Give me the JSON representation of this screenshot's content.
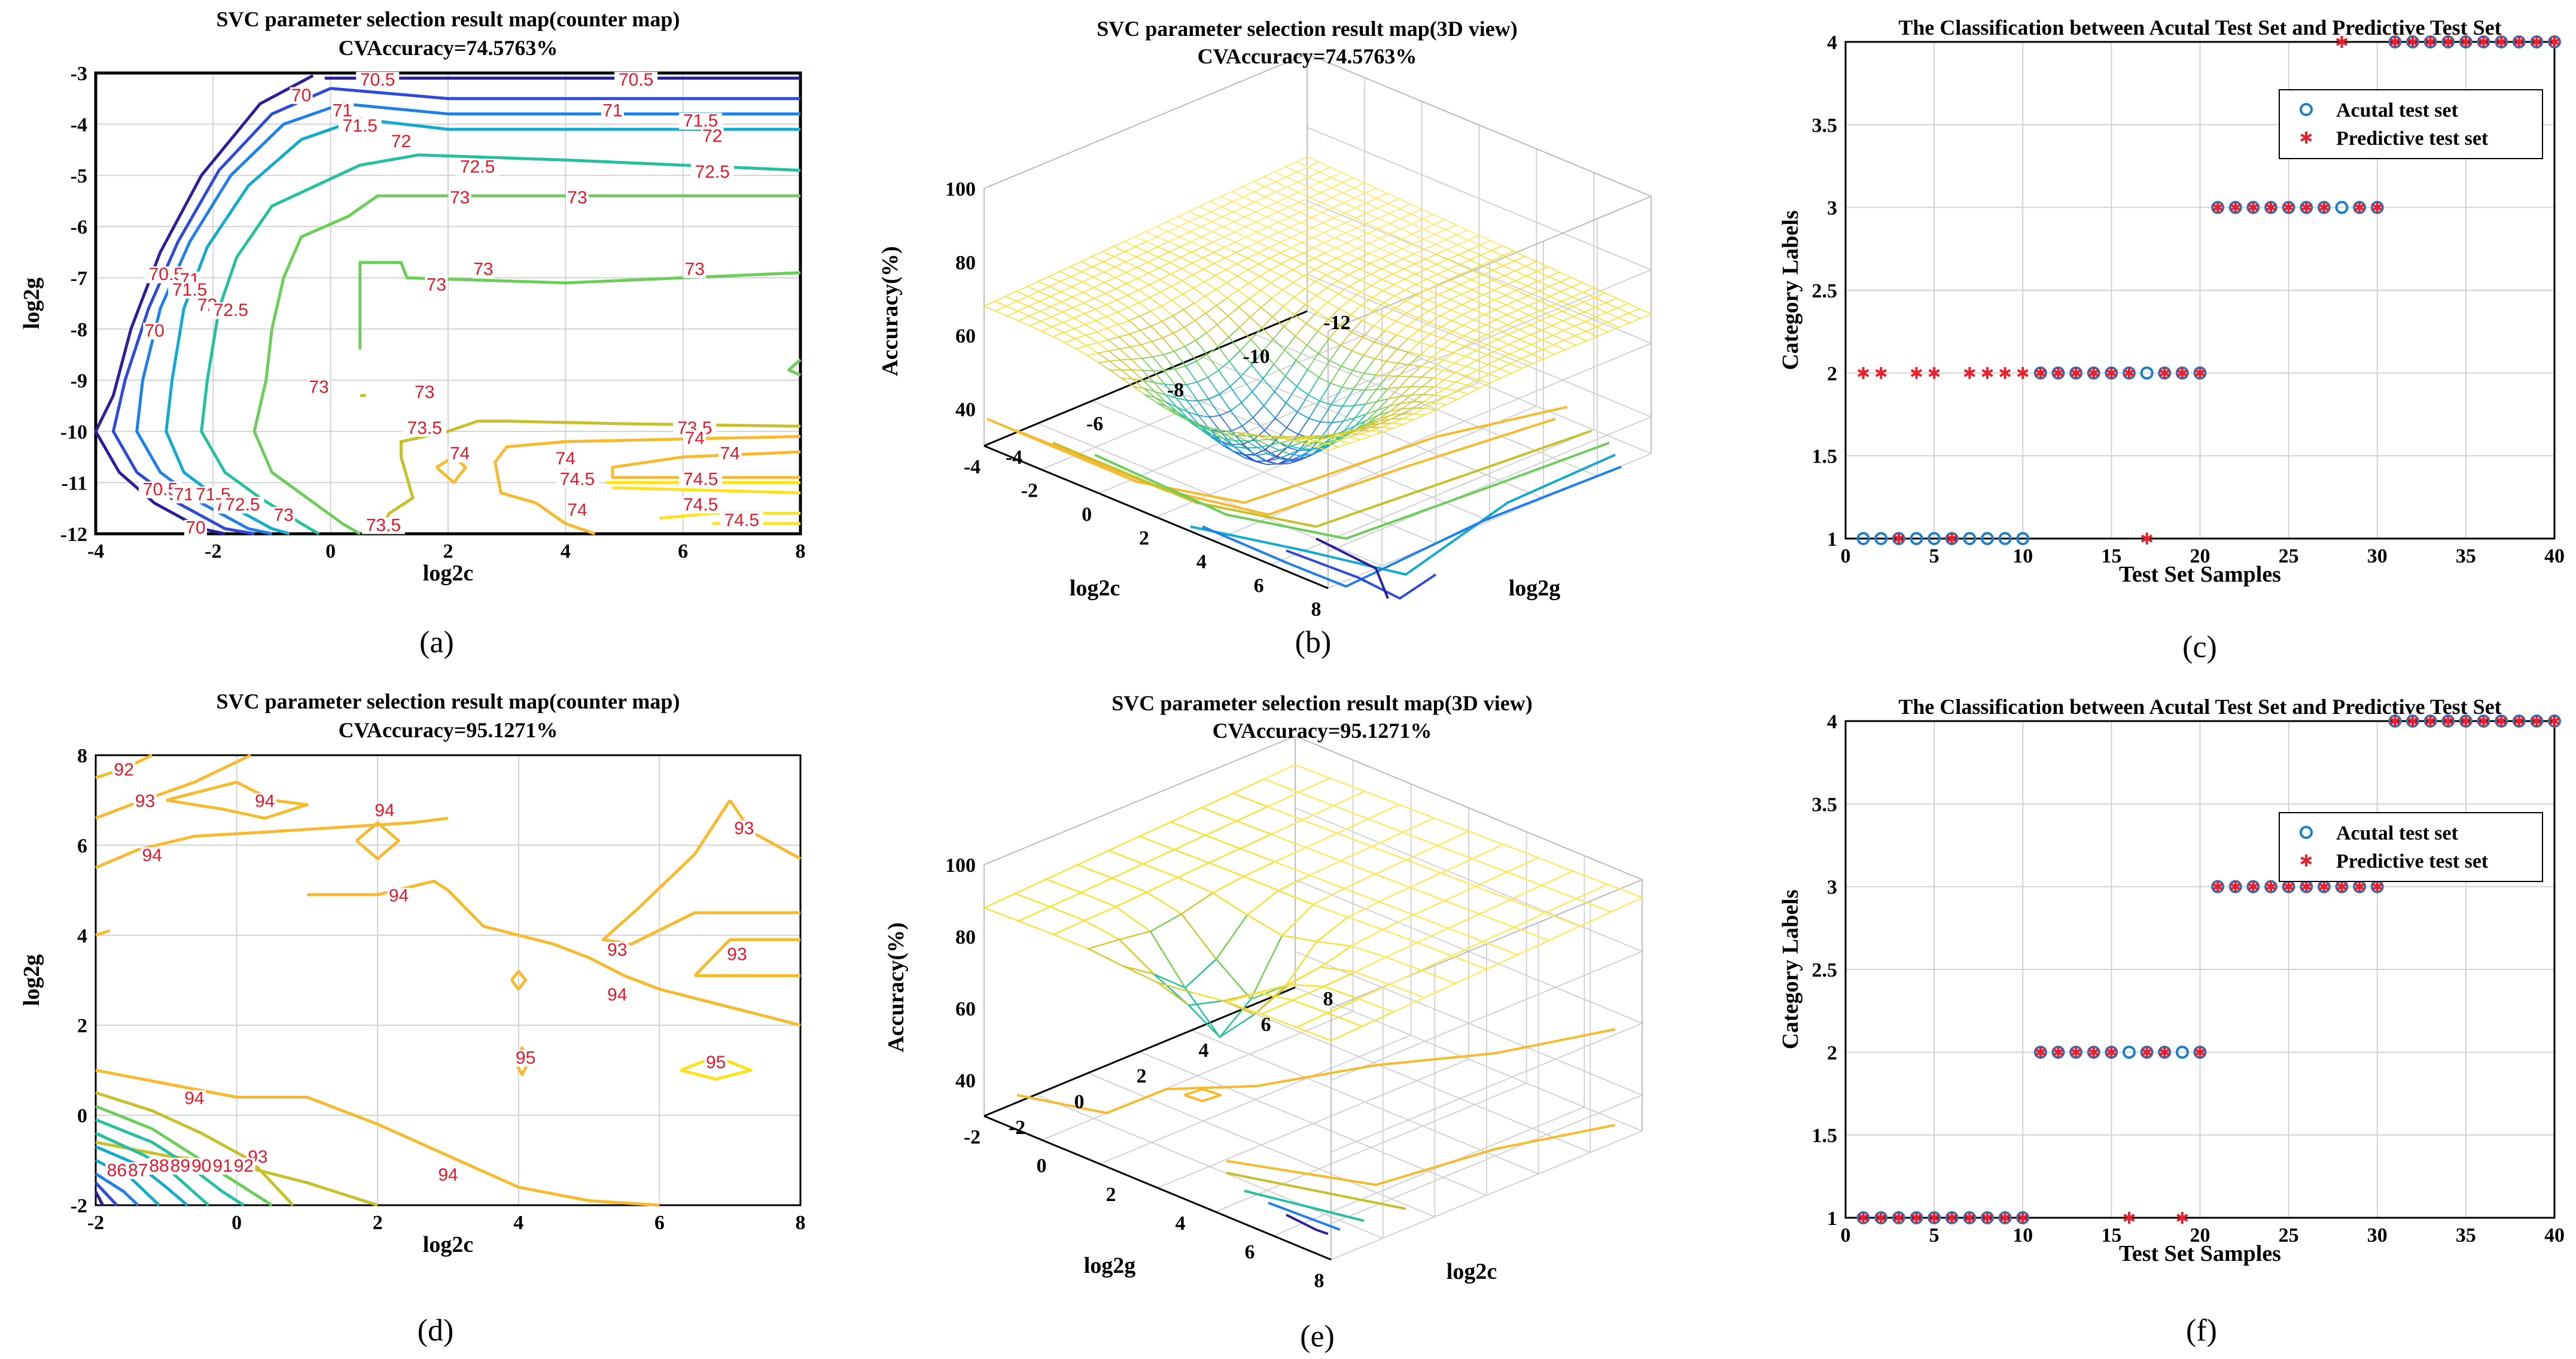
{
  "colors": {
    "contour": [
      "#2c1f9a",
      "#2f49d9",
      "#1f80e8",
      "#12aacd",
      "#25c19f",
      "#6ccd5b",
      "#c7c02d",
      "#f7ba2e",
      "#ffe21a"
    ],
    "actual_marker": "#1a7fc9",
    "predicted_marker": "#e8202e",
    "grid": "#d2d2d2"
  },
  "captions": [
    "(a)",
    "(b)",
    "(c)",
    "(d)",
    "(e)",
    "(f)"
  ],
  "chart_data": [
    {
      "id": "a",
      "type": "contour",
      "title": "SVC parameter selection result map(counter map)",
      "subtitle": "CVAccuracy=74.5763%",
      "xlabel": "log2c",
      "ylabel": "log2g",
      "xlim": [
        -4,
        8
      ],
      "ylim": [
        -12,
        -3
      ],
      "xticks": [
        -4,
        -2,
        0,
        2,
        4,
        6,
        8
      ],
      "yticks": [
        -12,
        -11,
        -10,
        -9,
        -8,
        -7,
        -6,
        -5,
        -4,
        -3
      ],
      "contour_labels": [
        {
          "text": "70.5",
          "x": 0.8,
          "y": -3.2
        },
        {
          "text": "70.5",
          "x": 5.2,
          "y": -3.2
        },
        {
          "text": "70",
          "x": -0.5,
          "y": -3.5
        },
        {
          "text": "71",
          "x": 0.2,
          "y": -3.8
        },
        {
          "text": "71",
          "x": 4.8,
          "y": -3.8
        },
        {
          "text": "71.5",
          "x": 0.5,
          "y": -4.1
        },
        {
          "text": "71.5",
          "x": 6.3,
          "y": -4.0
        },
        {
          "text": "72",
          "x": 1.2,
          "y": -4.4
        },
        {
          "text": "72",
          "x": 6.5,
          "y": -4.3
        },
        {
          "text": "72.5",
          "x": 2.5,
          "y": -4.9
        },
        {
          "text": "72.5",
          "x": 6.5,
          "y": -5.0
        },
        {
          "text": "73",
          "x": 2.2,
          "y": -5.5
        },
        {
          "text": "73",
          "x": 4.2,
          "y": -5.5
        },
        {
          "text": "73",
          "x": 2.6,
          "y": -6.9
        },
        {
          "text": "73",
          "x": 6.2,
          "y": -6.9
        },
        {
          "text": "73",
          "x": 1.8,
          "y": -7.2
        },
        {
          "text": "70.5",
          "x": -2.8,
          "y": -7.0
        },
        {
          "text": "71",
          "x": -2.4,
          "y": -7.1
        },
        {
          "text": "71.5",
          "x": -2.4,
          "y": -7.3
        },
        {
          "text": "72",
          "x": -2.1,
          "y": -7.6
        },
        {
          "text": "72.5",
          "x": -1.7,
          "y": -7.7
        },
        {
          "text": "70",
          "x": -3.0,
          "y": -8.1
        },
        {
          "text": "73",
          "x": -0.2,
          "y": -9.2
        },
        {
          "text": "73",
          "x": 1.6,
          "y": -9.3
        },
        {
          "text": "73.5",
          "x": 1.6,
          "y": -10.0
        },
        {
          "text": "73.5",
          "x": 6.2,
          "y": -10.0
        },
        {
          "text": "74",
          "x": 6.2,
          "y": -10.2
        },
        {
          "text": "74",
          "x": 2.2,
          "y": -10.5
        },
        {
          "text": "74",
          "x": 4.0,
          "y": -10.6
        },
        {
          "text": "74",
          "x": 6.8,
          "y": -10.5
        },
        {
          "text": "74.5",
          "x": 4.2,
          "y": -11.0
        },
        {
          "text": "74.5",
          "x": 6.3,
          "y": -11.0
        },
        {
          "text": "74.5",
          "x": 6.3,
          "y": -11.5
        },
        {
          "text": "74.5",
          "x": 7.0,
          "y": -11.8
        },
        {
          "text": "74",
          "x": 4.2,
          "y": -11.6
        },
        {
          "text": "70.5",
          "x": -2.9,
          "y": -11.2
        },
        {
          "text": "71",
          "x": -2.5,
          "y": -11.3
        },
        {
          "text": "71.5",
          "x": -2.0,
          "y": -11.3
        },
        {
          "text": "72",
          "x": -1.8,
          "y": -11.5
        },
        {
          "text": "72.5",
          "x": -1.5,
          "y": -11.5
        },
        {
          "text": "73",
          "x": -0.8,
          "y": -11.7
        },
        {
          "text": "73.5",
          "x": 0.9,
          "y": -11.9
        },
        {
          "text": "70",
          "x": -2.3,
          "y": -11.95
        }
      ]
    },
    {
      "id": "b",
      "type": "surface3d",
      "title": "SVC parameter selection result map(3D view)",
      "subtitle": "CVAccuracy=74.5763%",
      "xlabel": "log2c",
      "ylabel": "log2g",
      "zlabel": "Accuracy(%)",
      "xticks": [
        -4,
        -2,
        0,
        2,
        4,
        6,
        8
      ],
      "yticks": [
        -12,
        -10,
        -8,
        -6,
        -4
      ],
      "zticks": [
        40,
        60,
        80,
        100
      ],
      "zlim": [
        30,
        100
      ]
    },
    {
      "id": "c",
      "type": "scatter",
      "title": "The Classification between Acutal Test Set and Predictive Test Set",
      "xlabel": "Test Set Samples",
      "ylabel": "Category Labels",
      "xlim": [
        0,
        40
      ],
      "ylim": [
        1,
        4
      ],
      "xticks": [
        0,
        5,
        10,
        15,
        20,
        25,
        30,
        35,
        40
      ],
      "yticks": [
        "1",
        "1.5",
        "2",
        "2.5",
        "3",
        "3.5",
        "4"
      ],
      "legend": [
        "Acutal test set",
        "Predictive test set"
      ],
      "series": [
        {
          "name": "Acutal test set",
          "x": [
            1,
            2,
            3,
            4,
            5,
            6,
            7,
            8,
            9,
            10,
            11,
            12,
            13,
            14,
            15,
            16,
            17,
            18,
            19,
            20,
            21,
            22,
            23,
            24,
            25,
            26,
            27,
            28,
            29,
            30,
            31,
            32,
            33,
            34,
            35,
            36,
            37,
            38,
            39,
            40
          ],
          "y": [
            1,
            1,
            1,
            1,
            1,
            1,
            1,
            1,
            1,
            1,
            2,
            2,
            2,
            2,
            2,
            2,
            2,
            2,
            2,
            2,
            3,
            3,
            3,
            3,
            3,
            3,
            3,
            3,
            3,
            3,
            4,
            4,
            4,
            4,
            4,
            4,
            4,
            4,
            4,
            4
          ]
        },
        {
          "name": "Predictive test set",
          "x": [
            1,
            2,
            3,
            4,
            5,
            6,
            7,
            8,
            9,
            10,
            11,
            12,
            13,
            14,
            15,
            16,
            17,
            18,
            19,
            20,
            21,
            22,
            23,
            24,
            25,
            26,
            27,
            28,
            29,
            30,
            31,
            32,
            33,
            34,
            35,
            36,
            37,
            38,
            39,
            40
          ],
          "y": [
            2,
            2,
            1,
            2,
            2,
            1,
            2,
            2,
            2,
            2,
            2,
            2,
            2,
            2,
            2,
            2,
            1,
            2,
            2,
            2,
            3,
            3,
            3,
            3,
            3,
            3,
            3,
            4,
            3,
            3,
            4,
            4,
            4,
            4,
            4,
            4,
            4,
            4,
            4,
            4
          ]
        }
      ]
    },
    {
      "id": "d",
      "type": "contour",
      "title": "SVC parameter selection result map(counter map)",
      "subtitle": "CVAccuracy=95.1271%",
      "xlabel": "log2c",
      "ylabel": "log2g",
      "xlim": [
        -2,
        8
      ],
      "ylim": [
        -2,
        8
      ],
      "xticks": [
        -2,
        0,
        2,
        4,
        6,
        8
      ],
      "yticks": [
        -2,
        0,
        2,
        4,
        6,
        8
      ],
      "contour_labels": [
        {
          "text": "92",
          "x": -1.6,
          "y": 7.6
        },
        {
          "text": "93",
          "x": -1.3,
          "y": 6.9
        },
        {
          "text": "94",
          "x": 0.4,
          "y": 6.9
        },
        {
          "text": "94",
          "x": 2.1,
          "y": 6.7
        },
        {
          "text": "94",
          "x": -1.2,
          "y": 5.7
        },
        {
          "text": "94",
          "x": 2.3,
          "y": 4.8
        },
        {
          "text": "93",
          "x": 7.2,
          "y": 6.3
        },
        {
          "text": "93",
          "x": 5.4,
          "y": 3.6
        },
        {
          "text": "93",
          "x": 7.1,
          "y": 3.5
        },
        {
          "text": "94",
          "x": 5.4,
          "y": 2.6
        },
        {
          "text": "95",
          "x": 4.1,
          "y": 1.2
        },
        {
          "text": "95",
          "x": 6.8,
          "y": 1.1
        },
        {
          "text": "94",
          "x": -0.6,
          "y": 0.3
        },
        {
          "text": "94",
          "x": 3.0,
          "y": -1.4
        },
        {
          "text": "93",
          "x": 0.3,
          "y": -1.0
        },
        {
          "text": "92",
          "x": 0.1,
          "y": -1.2
        },
        {
          "text": "91",
          "x": -0.2,
          "y": -1.2
        },
        {
          "text": "90",
          "x": -0.5,
          "y": -1.2
        },
        {
          "text": "89",
          "x": -0.8,
          "y": -1.2
        },
        {
          "text": "88",
          "x": -1.1,
          "y": -1.2
        },
        {
          "text": "87",
          "x": -1.4,
          "y": -1.3
        },
        {
          "text": "86",
          "x": -1.7,
          "y": -1.3
        }
      ]
    },
    {
      "id": "e",
      "type": "surface3d",
      "title": "SVC parameter selection result map(3D view)",
      "subtitle": "CVAccuracy=95.1271%",
      "xlabel": "log2c",
      "ylabel": "log2g",
      "zlabel": "Accuracy(%)",
      "xticks": [
        -2,
        0,
        2,
        4,
        6,
        8
      ],
      "yticks": [
        -2,
        0,
        2,
        4,
        6,
        8
      ],
      "zticks": [
        40,
        60,
        80,
        100
      ],
      "zlim": [
        30,
        100
      ]
    },
    {
      "id": "f",
      "type": "scatter",
      "title": "The Classification between Acutal Test Set and Predictive Test Set",
      "xlabel": "Test Set Samples",
      "ylabel": "Category Labels",
      "xlim": [
        0,
        40
      ],
      "ylim": [
        1,
        4
      ],
      "xticks": [
        0,
        5,
        10,
        15,
        20,
        25,
        30,
        35,
        40
      ],
      "yticks": [
        "1",
        "1.5",
        "2",
        "2.5",
        "3",
        "3.5",
        "4"
      ],
      "legend": [
        "Acutal test set",
        "Predictive test set"
      ],
      "series": [
        {
          "name": "Acutal test set",
          "x": [
            1,
            2,
            3,
            4,
            5,
            6,
            7,
            8,
            9,
            10,
            11,
            12,
            13,
            14,
            15,
            16,
            17,
            18,
            19,
            20,
            21,
            22,
            23,
            24,
            25,
            26,
            27,
            28,
            29,
            30,
            31,
            32,
            33,
            34,
            35,
            36,
            37,
            38,
            39,
            40
          ],
          "y": [
            1,
            1,
            1,
            1,
            1,
            1,
            1,
            1,
            1,
            1,
            2,
            2,
            2,
            2,
            2,
            2,
            2,
            2,
            2,
            2,
            3,
            3,
            3,
            3,
            3,
            3,
            3,
            3,
            3,
            3,
            4,
            4,
            4,
            4,
            4,
            4,
            4,
            4,
            4,
            4
          ]
        },
        {
          "name": "Predictive test set",
          "x": [
            1,
            2,
            3,
            4,
            5,
            6,
            7,
            8,
            9,
            10,
            11,
            12,
            13,
            14,
            15,
            16,
            17,
            18,
            19,
            20,
            21,
            22,
            23,
            24,
            25,
            26,
            27,
            28,
            29,
            30,
            31,
            32,
            33,
            34,
            35,
            36,
            37,
            38,
            39,
            40
          ],
          "y": [
            1,
            1,
            1,
            1,
            1,
            1,
            1,
            1,
            1,
            1,
            2,
            2,
            2,
            2,
            2,
            1,
            2,
            2,
            1,
            2,
            3,
            3,
            3,
            3,
            3,
            3,
            3,
            3,
            3,
            3,
            4,
            4,
            4,
            4,
            4,
            4,
            4,
            4,
            4,
            4
          ]
        }
      ]
    }
  ]
}
